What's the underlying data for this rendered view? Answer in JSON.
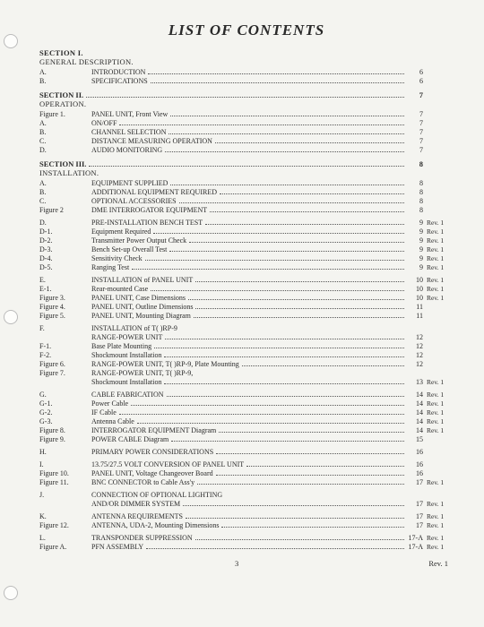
{
  "title": "LIST OF CONTENTS",
  "footer_page": "3",
  "footer_rev": "Rev. 1",
  "sections": [
    {
      "head": "SECTION I.",
      "sub": "GENERAL DESCRIPTION.",
      "head_page": "",
      "entries": [
        {
          "label": "A.",
          "text": "INTRODUCTION",
          "page": "6",
          "rev": ""
        },
        {
          "label": "B.",
          "text": "SPECIFICATIONS",
          "page": "6",
          "rev": ""
        }
      ]
    },
    {
      "head": "SECTION II.",
      "sub": "OPERATION.",
      "head_page": "7",
      "entries": [
        {
          "label": "Figure 1.",
          "text": "PANEL UNIT, Front View",
          "page": "7",
          "rev": ""
        },
        {
          "label": "A.",
          "text": "ON/OFF",
          "page": "7",
          "rev": ""
        },
        {
          "label": "B.",
          "text": "CHANNEL SELECTION",
          "page": "7",
          "rev": ""
        },
        {
          "label": "C.",
          "text": "DISTANCE MEASURING OPERATION",
          "page": "7",
          "rev": ""
        },
        {
          "label": "D.",
          "text": "AUDIO MONITORING",
          "page": "7",
          "rev": ""
        }
      ]
    },
    {
      "head": "SECTION III.",
      "sub": "INSTALLATION.",
      "head_page": "8",
      "entries": [
        {
          "label": "A.",
          "text": "EQUIPMENT SUPPLIED",
          "page": "8",
          "rev": ""
        },
        {
          "label": "B.",
          "text": "ADDITIONAL EQUIPMENT REQUIRED",
          "page": "8",
          "rev": ""
        },
        {
          "label": "C.",
          "text": "OPTIONAL ACCESSORIES",
          "page": "8",
          "rev": ""
        },
        {
          "label": "Figure 2",
          "text": "DME INTERROGATOR EQUIPMENT",
          "page": "8",
          "rev": ""
        },
        {
          "gap": true
        },
        {
          "label": "D.",
          "text": "PRE-INSTALLATION BENCH TEST",
          "page": "9",
          "rev": "Rev. 1"
        },
        {
          "label": "D-1.",
          "text": "Equipment Required",
          "page": "9",
          "rev": "Rev. 1"
        },
        {
          "label": "D-2.",
          "text": "Transmitter Power Output Check",
          "page": "9",
          "rev": "Rev. 1"
        },
        {
          "label": "D-3.",
          "text": "Bench Set-up Overall Test",
          "page": "9",
          "rev": "Rev. 1"
        },
        {
          "label": "D-4.",
          "text": "Sensitivity Check",
          "page": "9",
          "rev": "Rev. 1"
        },
        {
          "label": "D-5.",
          "text": "Ranging Test",
          "page": "9",
          "rev": "Rev. 1"
        },
        {
          "gap": true
        },
        {
          "label": "E.",
          "text": "INSTALLATION of PANEL UNIT",
          "page": "10",
          "rev": "Rev. 1"
        },
        {
          "label": "E-1.",
          "text": "Rear-mounted Case",
          "page": "10",
          "rev": "Rev. 1"
        },
        {
          "label": "Figure 3.",
          "text": "PANEL UNIT, Case Dimensions",
          "page": "10",
          "rev": "Rev. 1"
        },
        {
          "label": "Figure 4.",
          "text": "PANEL UNIT, Outline Dimensions",
          "page": "11",
          "rev": ""
        },
        {
          "label": "Figure 5.",
          "text": "PANEL UNIT, Mounting Diagram",
          "page": "11",
          "rev": ""
        },
        {
          "gap": true
        },
        {
          "label": "F.",
          "text": "INSTALLATION of T(  )RP-9",
          "page": "",
          "rev": "",
          "nodots": true
        },
        {
          "label": "",
          "text": "RANGE-POWER UNIT",
          "page": "12",
          "rev": ""
        },
        {
          "label": "F-1.",
          "text": "Base Plate Mounting",
          "page": "12",
          "rev": ""
        },
        {
          "label": "F-2.",
          "text": "Shockmount Installation",
          "page": "12",
          "rev": ""
        },
        {
          "label": "Figure 6.",
          "text": "RANGE-POWER UNIT, T(  )RP-9, Plate Mounting",
          "page": "12",
          "rev": ""
        },
        {
          "label": "Figure 7.",
          "text": "RANGE-POWER UNIT, T(  )RP-9,",
          "page": "",
          "rev": "",
          "nodots": true
        },
        {
          "label": "",
          "text": "Shockmount Installation",
          "page": "13",
          "rev": "Rev. 1"
        },
        {
          "gap": true
        },
        {
          "label": "G.",
          "text": "CABLE FABRICATION",
          "page": "14",
          "rev": "Rev. 1"
        },
        {
          "label": "G-1.",
          "text": "Power Cable",
          "page": "14",
          "rev": "Rev. 1"
        },
        {
          "label": "G-2.",
          "text": "IF Cable",
          "page": "14",
          "rev": "Rev. 1"
        },
        {
          "label": "G-3.",
          "text": "Antenna Cable",
          "page": "14",
          "rev": "Rev. 1"
        },
        {
          "label": "Figure 8.",
          "text": "INTERROGATOR EQUIPMENT Diagram",
          "page": "14",
          "rev": "Rev. 1"
        },
        {
          "label": "Figure 9.",
          "text": "POWER CABLE Diagram",
          "page": "15",
          "rev": ""
        },
        {
          "gap": true
        },
        {
          "label": "H.",
          "text": "PRIMARY POWER CONSIDERATIONS",
          "page": "16",
          "rev": ""
        },
        {
          "gap": true
        },
        {
          "label": "I.",
          "text": "13.75/27.5 VOLT CONVERSION OF PANEL UNIT",
          "page": "16",
          "rev": ""
        },
        {
          "label": "Figure 10.",
          "text": "PANEL UNIT, Voltage Changeover Board",
          "page": "16",
          "rev": ""
        },
        {
          "label": "Figure 11.",
          "text": "BNC CONNECTOR to Cable Ass'y",
          "page": "17",
          "rev": "Rev. 1"
        },
        {
          "gap": true
        },
        {
          "label": "J.",
          "text": "CONNECTION OF OPTIONAL LIGHTING",
          "page": "",
          "rev": "",
          "nodots": true
        },
        {
          "label": "",
          "text": "AND/OR DIMMER SYSTEM",
          "page": "17",
          "rev": "Rev. 1"
        },
        {
          "gap": true
        },
        {
          "label": "K.",
          "text": "ANTENNA REQUIREMENTS",
          "page": "17",
          "rev": "Rev. 1"
        },
        {
          "label": "Figure 12.",
          "text": "ANTENNA, UDA-2, Mounting Dimensions",
          "page": "17",
          "rev": "Rev. 1"
        },
        {
          "gap": true
        },
        {
          "label": "L.",
          "text": "TRANSPONDER SUPPRESSION",
          "page": "17-A",
          "rev": "Rev. 1"
        },
        {
          "label": "Figure A.",
          "text": "PFN ASSEMBLY",
          "page": "17-A",
          "rev": "Rev. 1"
        }
      ]
    }
  ]
}
